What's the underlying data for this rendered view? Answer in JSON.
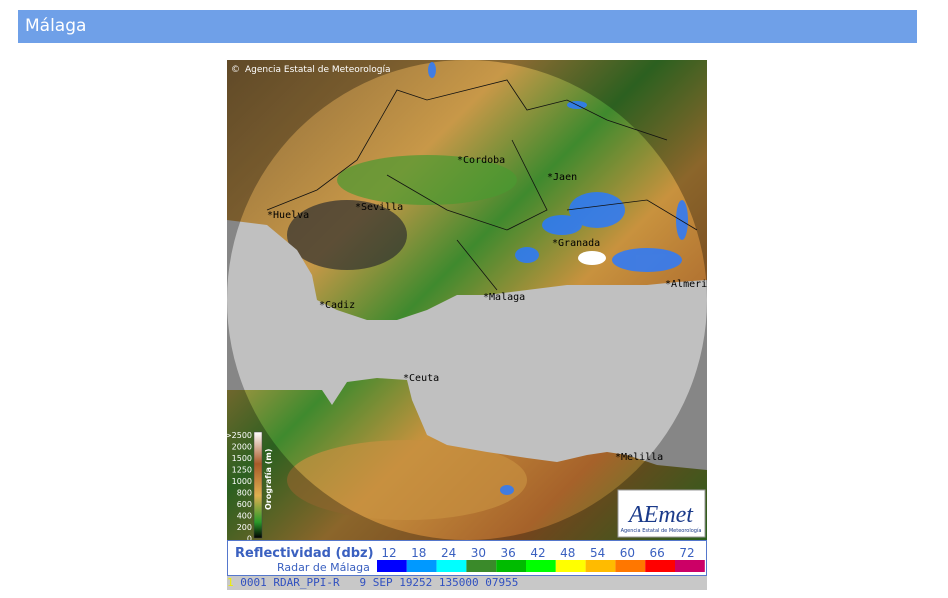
{
  "header": {
    "title": "Málaga"
  },
  "radar": {
    "copyright": "Agencia Estatal de Meteorología",
    "cities": [
      "Cordoba",
      "Jaen",
      "Sevilla",
      "Huelva",
      "Granada",
      "Malaga",
      "Cadiz",
      "Almeria",
      "Ceuta",
      "Melilla"
    ],
    "orography": {
      "title": "Orografía (m)",
      "levels": [
        ">2500",
        "2000",
        "1500",
        "1250",
        "1000",
        "800",
        "600",
        "400",
        "200",
        "0"
      ]
    },
    "logo": {
      "name": "AEmet",
      "subtitle": "Agencia Estatal de Meteorología"
    }
  },
  "legend": {
    "title": "Reflectividad (dbz)",
    "subtitle": "Radar de Málaga",
    "levels": [
      12,
      18,
      24,
      30,
      36,
      42,
      48,
      54,
      60,
      66,
      72
    ],
    "colors": [
      "#0000ff",
      "#0099ff",
      "#00ffff",
      "#3a8a2a",
      "#00bb00",
      "#00ff00",
      "#ffff00",
      "#ffbb00",
      "#ff7700",
      "#ff0000",
      "#cc0066"
    ]
  },
  "status": {
    "index": "1",
    "code": "0001 RDAR_PPI-R   9 SEP 19252 135000 07955"
  }
}
